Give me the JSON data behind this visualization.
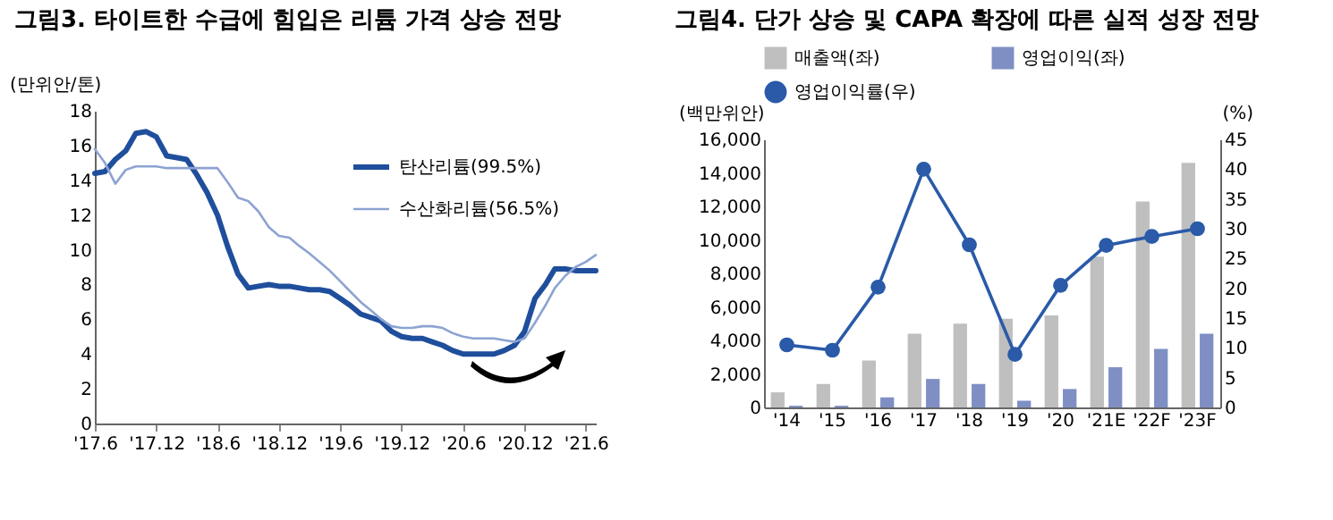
{
  "chart_data": [
    {
      "type": "line",
      "title": "그림3. 타이트한 수급에 힘입은 리튬 가격 상승 전망",
      "ylabel": "(만위안/톤)",
      "x": [
        "2017-06",
        "2017-07",
        "2017-08",
        "2017-09",
        "2017-10",
        "2017-11",
        "2017-12",
        "2018-01",
        "2018-02",
        "2018-03",
        "2018-04",
        "2018-05",
        "2018-06",
        "2018-07",
        "2018-08",
        "2018-09",
        "2018-10",
        "2018-11",
        "2018-12",
        "2019-01",
        "2019-02",
        "2019-03",
        "2019-04",
        "2019-05",
        "2019-06",
        "2019-07",
        "2019-08",
        "2019-09",
        "2019-10",
        "2019-11",
        "2019-12",
        "2020-01",
        "2020-02",
        "2020-03",
        "2020-04",
        "2020-05",
        "2020-06",
        "2020-07",
        "2020-08",
        "2020-09",
        "2020-10",
        "2020-11",
        "2020-12",
        "2021-01",
        "2021-02",
        "2021-03",
        "2021-04",
        "2021-05",
        "2021-06",
        "2021-07"
      ],
      "series": [
        {
          "name": "탄산리튬(99.5%)",
          "color": "#1f4e9c",
          "values": [
            14.4,
            14.5,
            15.2,
            15.7,
            16.7,
            16.8,
            16.5,
            15.4,
            15.3,
            15.2,
            14.3,
            13.3,
            12.0,
            10.2,
            8.6,
            7.8,
            7.9,
            8.0,
            7.9,
            7.9,
            7.8,
            7.7,
            7.7,
            7.6,
            7.2,
            6.8,
            6.3,
            6.1,
            5.9,
            5.3,
            5.0,
            4.9,
            4.9,
            4.7,
            4.5,
            4.2,
            4.0,
            4.0,
            4.0,
            4.0,
            4.2,
            4.5,
            5.3,
            7.2,
            8.0,
            8.9,
            8.9,
            8.8,
            8.8,
            8.8
          ]
        },
        {
          "name": "수산화리튬(56.5%)",
          "color": "#8da3d2",
          "values": [
            15.8,
            15.0,
            13.8,
            14.6,
            14.8,
            14.8,
            14.8,
            14.7,
            14.7,
            14.7,
            14.7,
            14.7,
            14.7,
            13.9,
            13.0,
            12.8,
            12.2,
            11.3,
            10.8,
            10.7,
            10.2,
            9.8,
            9.3,
            8.8,
            8.2,
            7.6,
            7.0,
            6.5,
            6.0,
            5.6,
            5.5,
            5.5,
            5.6,
            5.6,
            5.5,
            5.2,
            5.0,
            4.9,
            4.9,
            4.9,
            4.8,
            4.7,
            4.9,
            5.8,
            6.8,
            7.8,
            8.5,
            9.0,
            9.3,
            9.7
          ]
        }
      ],
      "xlim": [
        "2017-06",
        "2021-07"
      ],
      "xticks": [
        {
          "value": "2017-06",
          "label": "'17.6"
        },
        {
          "value": "2017-12",
          "label": "'17.12"
        },
        {
          "value": "2018-06",
          "label": "'18.6"
        },
        {
          "value": "2018-12",
          "label": "'18.12"
        },
        {
          "value": "2019-06",
          "label": "'19.6"
        },
        {
          "value": "2019-12",
          "label": "'19.12"
        },
        {
          "value": "2020-06",
          "label": "'20.6"
        },
        {
          "value": "2020-12",
          "label": "'20.12"
        },
        {
          "value": "2021-06",
          "label": "'21.6"
        }
      ],
      "ylim": [
        0,
        18
      ],
      "yticks": [
        0,
        2,
        4,
        6,
        8,
        10,
        12,
        14,
        16,
        18
      ],
      "grid": false,
      "legend": "top right",
      "line_style": "solid",
      "marker": "none"
    },
    {
      "type": "bar",
      "title": "그림4. 단가 상승 및 CAPA 확장에 따른 실적 성장 전망",
      "ylabel": "(백만위안)",
      "y2label": "(%)",
      "categories": [
        "'14",
        "'15",
        "'16",
        "'17",
        "'18",
        "'19",
        "'20",
        "'21E",
        "'22F",
        "'23F"
      ],
      "series": [
        {
          "name": "매출액(좌)",
          "color": "#bfbfbf",
          "values": [
            900,
            1400,
            2800,
            4400,
            5000,
            5300,
            5500,
            9000,
            12300,
            14600
          ]
        },
        {
          "name": "영업이익(좌)",
          "color": "#7f8fc4",
          "values": [
            100,
            100,
            600,
            1700,
            1400,
            400,
            1100,
            2400,
            3500,
            4400
          ]
        },
        {
          "name": "영업이익률(우)",
          "type": "line",
          "axis": "y2",
          "color": "#2a5aa8",
          "values": [
            10.5,
            9.6,
            20.2,
            40,
            27.3,
            8.9,
            20.5,
            27.2,
            28.7,
            30
          ]
        }
      ],
      "ylim": [
        0,
        16000
      ],
      "yticks": [
        0,
        {
          "value": 2000,
          "label": "2,000"
        },
        {
          "value": 4000,
          "label": "4,000"
        },
        {
          "value": 6000,
          "label": "6,000"
        },
        {
          "value": 8000,
          "label": "8,000"
        },
        {
          "value": 10000,
          "label": "10,000"
        },
        {
          "value": 12000,
          "label": "12,000"
        },
        {
          "value": 14000,
          "label": "14,000"
        },
        {
          "value": 16000,
          "label": "16,000"
        }
      ],
      "y2lim": [
        0,
        45
      ],
      "y2ticks": [
        0,
        5,
        10,
        15,
        20,
        25,
        30,
        35,
        40,
        45
      ],
      "grid": false,
      "legend": "top",
      "marker": "circle"
    }
  ]
}
